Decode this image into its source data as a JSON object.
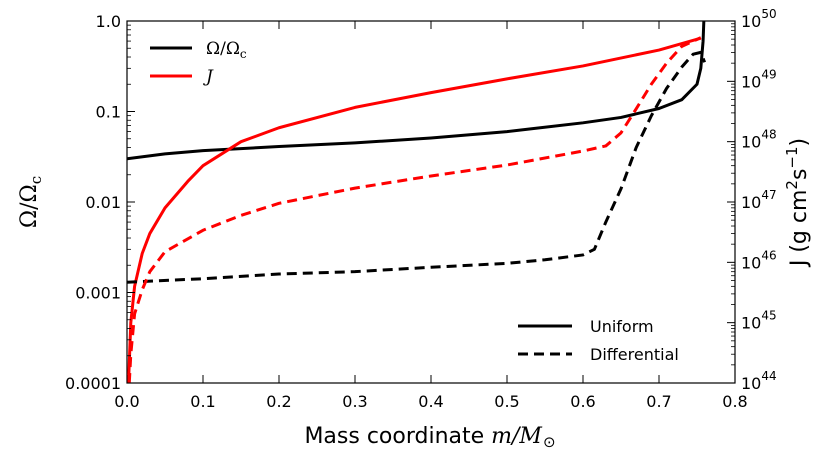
{
  "chart_data": {
    "type": "line",
    "xlabel_text": "Mass coordinate ",
    "xlabel_math": "m/M",
    "ylabel_left_main": "Ω/Ω",
    "ylabel_left_sub": "c",
    "ylabel_right_main": "J (g cm",
    "ylabel_right_exp1": "2",
    "ylabel_right_mid": "s",
    "ylabel_right_exp2": "−1",
    "ylabel_right_end": ")",
    "xlim": [
      0.0,
      0.8
    ],
    "ylim_left": [
      0.0001,
      1.0
    ],
    "ylim_right": [
      1e+44,
      1e+50
    ],
    "left_scale": "log",
    "right_scale": "log",
    "x_ticks": [
      "0.0",
      "0.1",
      "0.2",
      "0.3",
      "0.4",
      "0.5",
      "0.6",
      "0.7",
      "0.8"
    ],
    "y_left_ticks": [
      "1.0",
      "0.1",
      "0.01",
      "0.001",
      "0.0001"
    ],
    "y_right_ticks": [
      {
        "base": "10",
        "exp": "50"
      },
      {
        "base": "10",
        "exp": "49"
      },
      {
        "base": "10",
        "exp": "48"
      },
      {
        "base": "10",
        "exp": "47"
      },
      {
        "base": "10",
        "exp": "46"
      },
      {
        "base": "10",
        "exp": "45"
      },
      {
        "base": "10",
        "exp": "44"
      }
    ],
    "legend_top": [
      {
        "label_main": "Ω/Ω",
        "label_sub": "c",
        "color": "#000000"
      },
      {
        "label_main": "J",
        "label_sub": "",
        "color": "#ff0000"
      }
    ],
    "legend_bottom": [
      {
        "label": "Uniform",
        "style": "solid"
      },
      {
        "label": "Differential",
        "style": "dashed"
      }
    ],
    "series": [
      {
        "axis": "left",
        "color": "#000000",
        "dash": false,
        "points": [
          [
            0.0,
            0.03
          ],
          [
            0.05,
            0.034
          ],
          [
            0.1,
            0.037
          ],
          [
            0.2,
            0.041
          ],
          [
            0.3,
            0.045
          ],
          [
            0.4,
            0.051
          ],
          [
            0.5,
            0.06
          ],
          [
            0.6,
            0.075
          ],
          [
            0.65,
            0.086
          ],
          [
            0.7,
            0.108
          ],
          [
            0.73,
            0.135
          ],
          [
            0.75,
            0.2
          ],
          [
            0.755,
            0.3
          ],
          [
            0.758,
            0.6
          ],
          [
            0.759,
            1.0
          ]
        ]
      },
      {
        "axis": "right",
        "color": "#ff0000",
        "dash": false,
        "points": [
          [
            0.002,
            1e+44
          ],
          [
            0.005,
            1e+45
          ],
          [
            0.01,
            4e+45
          ],
          [
            0.02,
            1.4e+46
          ],
          [
            0.03,
            3e+46
          ],
          [
            0.05,
            8e+46
          ],
          [
            0.08,
            2.2e+47
          ],
          [
            0.1,
            4e+47
          ],
          [
            0.15,
            1e+48
          ],
          [
            0.2,
            1.7e+48
          ],
          [
            0.3,
            3.7e+48
          ],
          [
            0.4,
            6.5e+48
          ],
          [
            0.5,
            1.1e+49
          ],
          [
            0.6,
            1.8e+49
          ],
          [
            0.7,
            3.3e+49
          ],
          [
            0.755,
            5.2e+49
          ]
        ]
      },
      {
        "axis": "left",
        "color": "#000000",
        "dash": true,
        "points": [
          [
            0.0,
            0.0013
          ],
          [
            0.1,
            0.00142
          ],
          [
            0.2,
            0.0016
          ],
          [
            0.3,
            0.0017
          ],
          [
            0.4,
            0.0019
          ],
          [
            0.5,
            0.0021
          ],
          [
            0.55,
            0.0023
          ],
          [
            0.6,
            0.0026
          ],
          [
            0.615,
            0.003
          ],
          [
            0.63,
            0.006
          ],
          [
            0.65,
            0.014
          ],
          [
            0.67,
            0.04
          ],
          [
            0.69,
            0.09
          ],
          [
            0.71,
            0.18
          ],
          [
            0.73,
            0.31
          ],
          [
            0.745,
            0.43
          ],
          [
            0.755,
            0.45
          ],
          [
            0.76,
            0.35
          ]
        ]
      },
      {
        "axis": "right",
        "color": "#ff0000",
        "dash": true,
        "points": [
          [
            0.003,
            1e+44
          ],
          [
            0.005,
            3e+44
          ],
          [
            0.01,
            1.4e+45
          ],
          [
            0.02,
            3.5e+45
          ],
          [
            0.03,
            7e+45
          ],
          [
            0.05,
            1.5e+46
          ],
          [
            0.1,
            3.4e+46
          ],
          [
            0.15,
            6e+46
          ],
          [
            0.2,
            9.5e+46
          ],
          [
            0.3,
            1.7e+47
          ],
          [
            0.4,
            2.7e+47
          ],
          [
            0.5,
            4.1e+47
          ],
          [
            0.6,
            7e+47
          ],
          [
            0.63,
            8.5e+47
          ],
          [
            0.65,
            1.4e+48
          ],
          [
            0.67,
            3.5e+48
          ],
          [
            0.69,
            9e+48
          ],
          [
            0.71,
            2e+49
          ],
          [
            0.73,
            3.8e+49
          ],
          [
            0.755,
            5.3e+49
          ]
        ]
      }
    ]
  }
}
